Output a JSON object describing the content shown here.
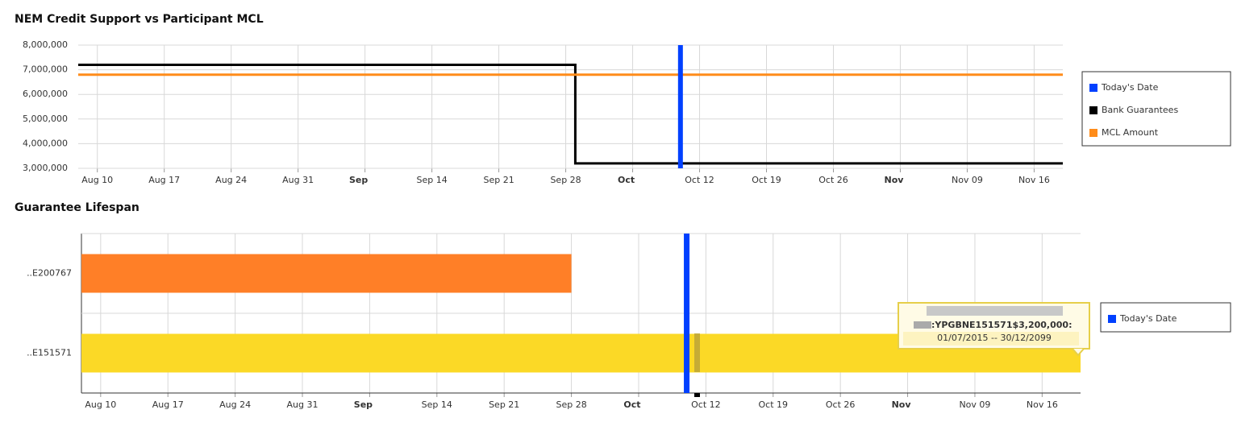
{
  "chart_data": [
    {
      "type": "line",
      "title": "NEM Credit Support vs Participant MCL",
      "xlim": [
        "Aug 8",
        "Nov 19"
      ],
      "xticks": [
        "Aug 10",
        "Aug 17",
        "Aug 24",
        "Aug 31",
        {
          "value": "Sep 7",
          "label": "Sep"
        },
        "Sep 14",
        "Sep 21",
        "Sep 28",
        {
          "value": "Oct 5",
          "label": "Oct"
        },
        "Oct 12",
        "Oct 19",
        "Oct 26",
        {
          "value": "Nov 2",
          "label": "Nov"
        },
        "Nov 09",
        "Nov 16"
      ],
      "ylim": [
        3000000,
        8000000
      ],
      "yticks": [
        {
          "value": 3000000,
          "label": "3,000,000"
        },
        {
          "value": 4000000,
          "label": "4,000,000"
        },
        {
          "value": 5000000,
          "label": "5,000,000"
        },
        {
          "value": 6000000,
          "label": "6,000,000"
        },
        {
          "value": 7000000,
          "label": "7,000,000"
        },
        {
          "value": 8000000,
          "label": "8,000,000"
        }
      ],
      "grid": true,
      "legend": "right",
      "series": [
        {
          "name": "Today's Date",
          "color": "#0040ff",
          "x": [
            "Oct 10",
            "Oct 10"
          ],
          "values": [
            3000000,
            8000000
          ]
        },
        {
          "name": "Bank Guarantees",
          "color": "#000000",
          "x": [
            "Aug 8",
            "Sep 29",
            "Sep 29",
            "Nov 19"
          ],
          "values": [
            7200000,
            7200000,
            3200000,
            3200000
          ]
        },
        {
          "name": "MCL Amount",
          "color": "#ff8c1a",
          "x": [
            "Aug 8",
            "Nov 19"
          ],
          "values": [
            6800000,
            6800000
          ]
        }
      ]
    },
    {
      "type": "gantt",
      "title": "Guarantee Lifespan",
      "xlim": [
        "Aug 8",
        "Nov 20"
      ],
      "xticks": [
        "Aug 10",
        "Aug 17",
        "Aug 24",
        "Aug 31",
        {
          "value": "Sep 7",
          "label": "Sep"
        },
        "Sep 14",
        "Sep 21",
        "Sep 28",
        {
          "value": "Oct 5",
          "label": "Oct"
        },
        "Oct 12",
        "Oct 19",
        "Oct 26",
        {
          "value": "Nov 2",
          "label": "Nov"
        },
        "Nov 09",
        "Nov 16"
      ],
      "categories": [
        "..E200767",
        "..E151571"
      ],
      "starts": [
        "Aug 8",
        "Jul 1"
      ],
      "ends": [
        "Sep 28",
        "Dec 30"
      ],
      "colors": [
        "#ff7f27",
        "#fbd926"
      ],
      "grid": true,
      "legend": "right",
      "series": [
        {
          "name": "Today's Date",
          "color": "#0040ff",
          "x": [
            "Oct 10"
          ]
        }
      ],
      "tooltip": {
        "title": ":YPGBNE151571$3,200,000:",
        "text": "01/07/2015 -- 30/12/2099"
      }
    }
  ]
}
